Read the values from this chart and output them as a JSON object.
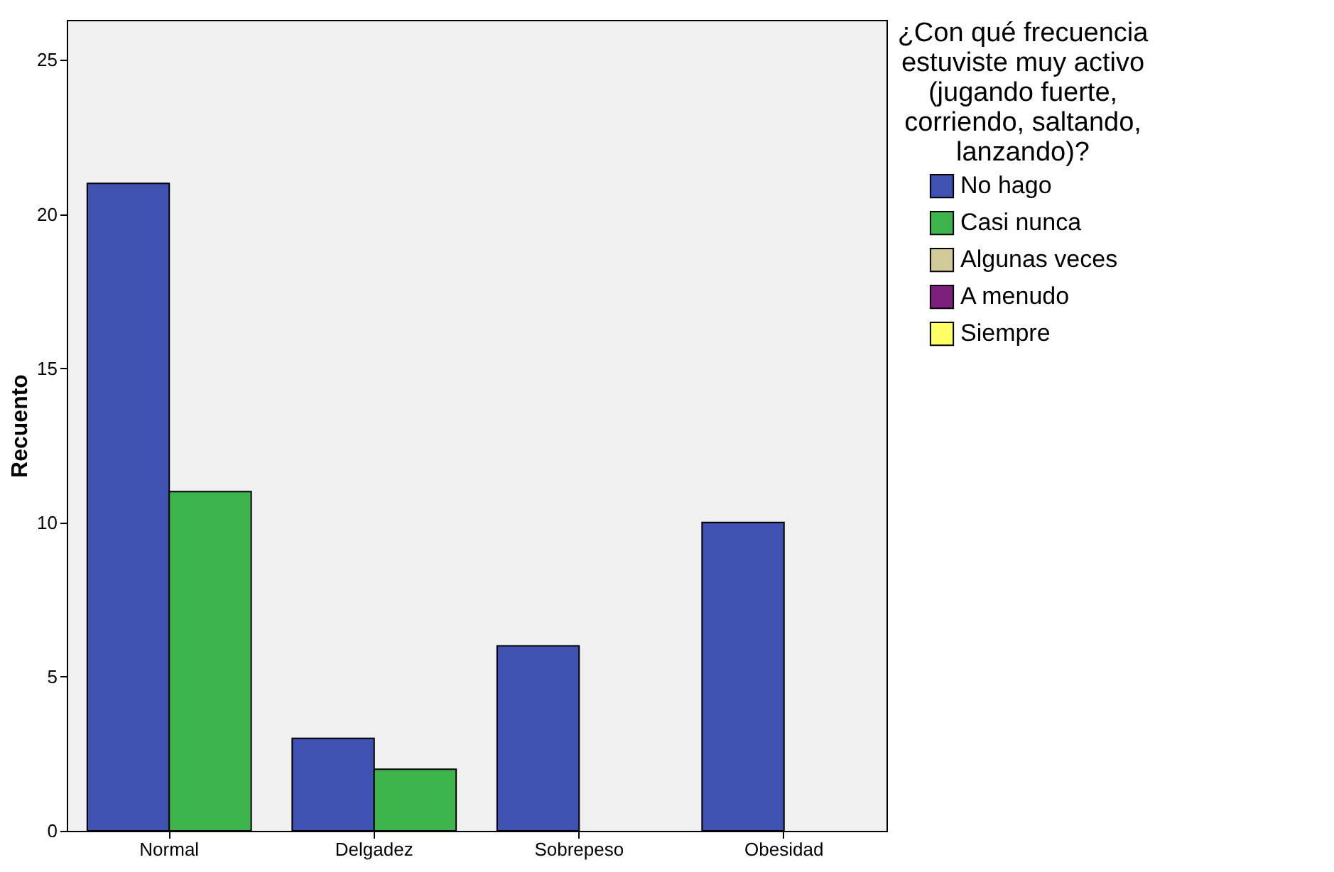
{
  "chart_data": {
    "type": "bar",
    "ylabel": "Recuento",
    "legend_title": "¿Con qué frecuencia estuviste muy activo (jugando fuerte, corriendo, saltando, lanzando)?",
    "categories": [
      "Normal",
      "Delgadez",
      "Sobrepeso",
      "Obesidad"
    ],
    "series": [
      {
        "name": "No hago",
        "color": "#3f51b1",
        "values": [
          21,
          3,
          6,
          10
        ]
      },
      {
        "name": "Casi nunca",
        "color": "#3cb44b",
        "values": [
          11,
          2,
          null,
          null
        ]
      },
      {
        "name": "Algunas veces",
        "color": "#d3ca9a",
        "values": [
          null,
          null,
          null,
          null
        ]
      },
      {
        "name": "A menudo",
        "color": "#7d1f7d",
        "values": [
          null,
          null,
          null,
          null
        ]
      },
      {
        "name": "Siempre",
        "color": "#ffff66",
        "values": [
          null,
          null,
          null,
          null
        ]
      }
    ],
    "ylim": [
      0,
      26.3
    ],
    "yticks": [
      0,
      5,
      10,
      15,
      20,
      25
    ],
    "grid": false,
    "legend": "right"
  }
}
